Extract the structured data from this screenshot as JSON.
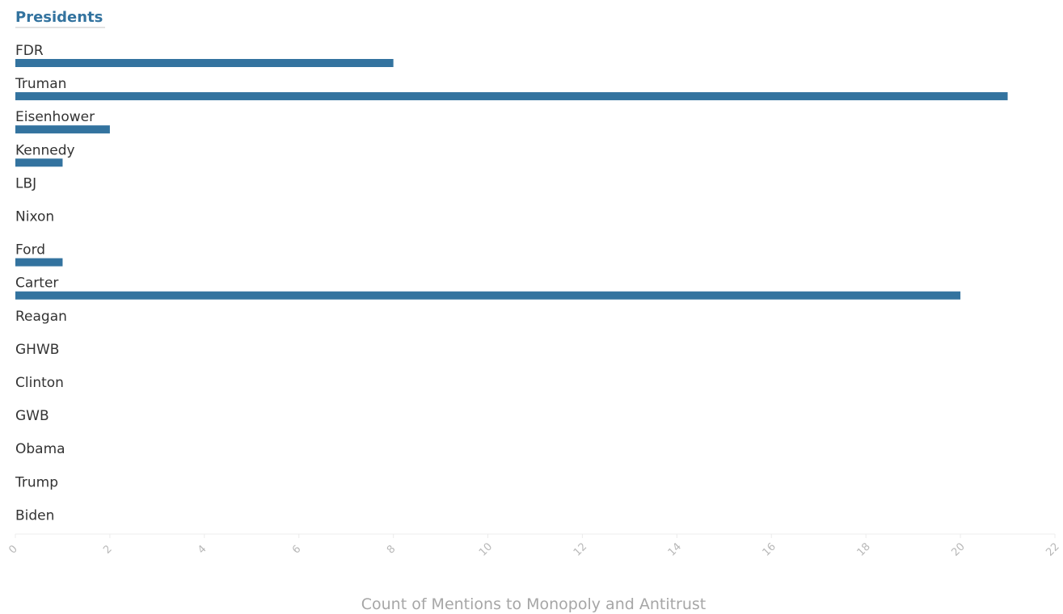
{
  "chart_data": {
    "type": "bar",
    "orientation": "horizontal",
    "header": "Presidents",
    "categories": [
      "FDR",
      "Truman",
      "Eisenhower",
      "Kennedy",
      "LBJ",
      "Nixon",
      "Ford",
      "Carter",
      "Reagan",
      "GHWB",
      "Clinton",
      "GWB",
      "Obama",
      "Trump",
      "Biden"
    ],
    "values": [
      8,
      21,
      2,
      1,
      0,
      0,
      1,
      20,
      0,
      0,
      0,
      0,
      0,
      0,
      0
    ],
    "xlabel": "Count of Mentions to Monopoly and Antitrust",
    "ylabel": "",
    "xlim": [
      0,
      22
    ],
    "xticks": [
      "0",
      "2",
      "4",
      "6",
      "8",
      "10",
      "12",
      "14",
      "16",
      "18",
      "20",
      "22"
    ],
    "grid": false,
    "colors": {
      "bar": "#33739f",
      "header": "#33739f",
      "header_underline": "#d9d9d9",
      "axis_line": "#ececec"
    }
  }
}
